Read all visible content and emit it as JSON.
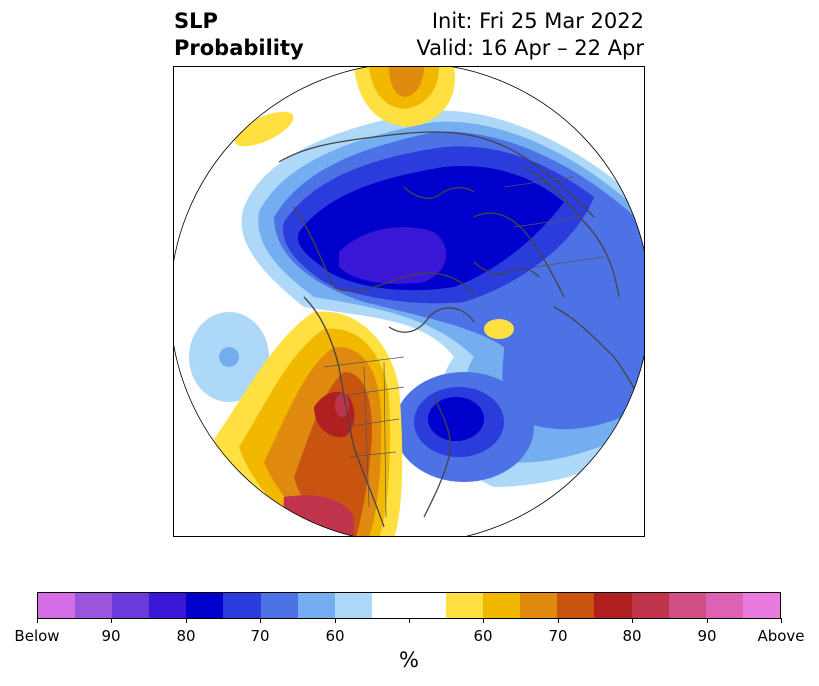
{
  "title": {
    "line1": "SLP",
    "line2": "Probability",
    "init": "Init: Fri 25 Mar 2022",
    "valid": "Valid: 16 Apr – 22 Apr"
  },
  "map": {
    "projection": "north-polar-stereographic",
    "variable": "SLP"
  },
  "colorbar": {
    "unit": "%",
    "colors": [
      "#d56ee6",
      "#9c54dd",
      "#6b3ad8",
      "#3a16d6",
      "#0000cc",
      "#2a3cdc",
      "#4d72e6",
      "#75aef0",
      "#aed8f8",
      "#ffffff",
      "#ffffff",
      "#ffe040",
      "#f2b800",
      "#e08a10",
      "#c85410",
      "#b02020",
      "#c0344c",
      "#d04e84",
      "#de62b4",
      "#e87ae0"
    ],
    "ticks": [
      {
        "label": "Below"
      },
      {
        "label": "90"
      },
      {
        "label": "80"
      },
      {
        "label": "70"
      },
      {
        "label": "60"
      },
      {
        "label": ""
      },
      {
        "label": "60"
      },
      {
        "label": "70"
      },
      {
        "label": "80"
      },
      {
        "label": "90"
      },
      {
        "label": "Above"
      }
    ]
  }
}
